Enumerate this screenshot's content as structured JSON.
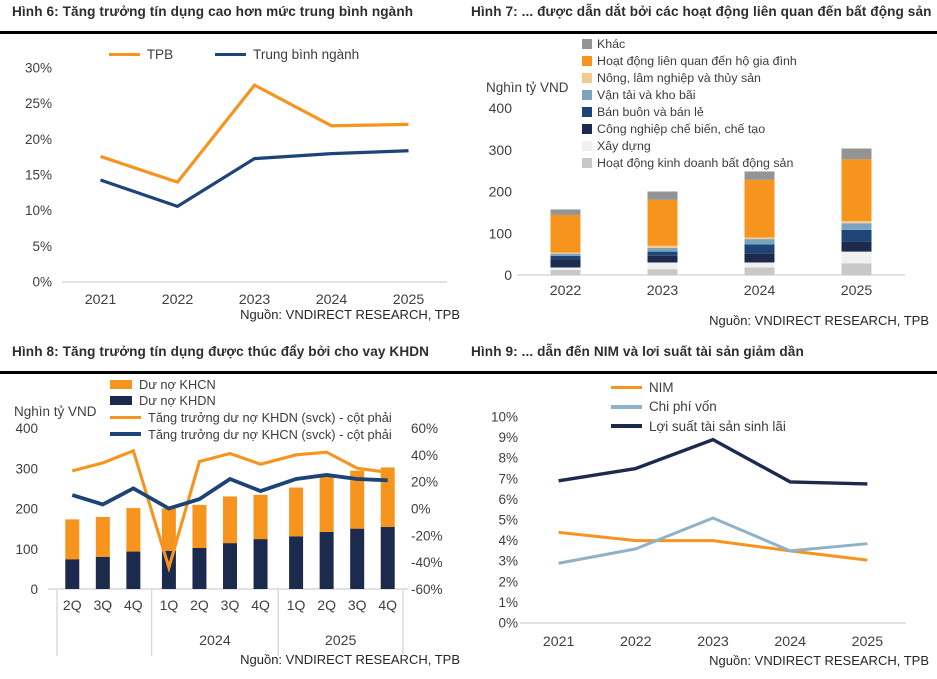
{
  "page": {
    "background": "#FFFFFF"
  },
  "colors": {
    "orange": "#F7941E",
    "navyLine": "#1D4478",
    "darkNavy": "#1C2B4D",
    "midBlue": "#1F4576",
    "steelBlue": "#7BA3BF",
    "steelBlue2": "#8FB3C6",
    "tan": "#F6C990",
    "gray": "#949494",
    "lightGray": "#C8C8C8",
    "offWhite": "#F1F1F1",
    "axisLine": "#D9D9D9",
    "tickText": "#3F3F3F"
  },
  "chart_data": [
    {
      "id": "fig6",
      "type": "line",
      "title": "Hình 6: Tăng trưởng tín dụng cao hơn mức trung bình ngành",
      "source": "Nguồn: VNDIRECT RESEARCH, TPB",
      "categories": [
        "2021",
        "2022",
        "2023",
        "2024",
        "2025"
      ],
      "series": [
        {
          "name": "TPB",
          "color_key": "orange",
          "values": [
            17.6,
            14.0,
            27.6,
            21.9,
            22.1
          ]
        },
        {
          "name": "Trung bình ngành",
          "color_key": "navyLine",
          "values": [
            14.3,
            10.6,
            17.3,
            18.0,
            18.4
          ]
        }
      ],
      "ylim": [
        0,
        30
      ],
      "ytick_step": 5,
      "yformat": "percent",
      "grid": "off",
      "legend_position": "top-center"
    },
    {
      "id": "fig7",
      "type": "bar",
      "title": "Hình 7: ... được dẫn dắt bởi các hoạt động liên quan đến bất động sản",
      "source": "Nguồn: VNDIRECT RESEARCH, TPB",
      "ylabel": "Nghìn tỷ VND",
      "categories": [
        "2022",
        "2023",
        "2024",
        "2025"
      ],
      "series_bottom_to_top": [
        {
          "name": "Hoạt động kinh doanh bất động sản",
          "color_key": "lightGray",
          "values": [
            12,
            14,
            18,
            28
          ]
        },
        {
          "name": "Xây dựng",
          "color_key": "offWhite",
          "values": [
            6,
            16,
            12,
            28
          ]
        },
        {
          "name": "Công nghiệp chế biến, chế tạo",
          "color_key": "darkNavy",
          "values": [
            20,
            16,
            22,
            24
          ]
        },
        {
          "name": "Bán buôn và bán lẻ",
          "color_key": "midBlue",
          "values": [
            8,
            10,
            21,
            28
          ]
        },
        {
          "name": "Vận tải và kho bãi",
          "color_key": "steelBlue",
          "values": [
            5,
            9,
            13,
            16
          ]
        },
        {
          "name": "Nông, lâm nghiệp và thủy sản",
          "color_key": "tan",
          "values": [
            3,
            5,
            4,
            5
          ]
        },
        {
          "name": "Hoạt động liên quan đến hộ gia đình",
          "color_key": "orange",
          "values": [
            90,
            110,
            138,
            148
          ]
        },
        {
          "name": "Khác",
          "color_key": "gray",
          "values": [
            13,
            20,
            20,
            26
          ]
        }
      ],
      "totals": [
        157,
        200,
        248,
        303
      ],
      "ylim": [
        0,
        400
      ],
      "ytick_step": 100,
      "grid": "off",
      "legend_position": "top-right-overlay"
    },
    {
      "id": "fig8",
      "type": "bar",
      "subtype": "stacked-bar-with-lines",
      "title": "Hình 8: Tăng trưởng tín dụng được thúc đẩy bởi cho vay KHDN",
      "source": "Nguồn: VNDIRECT RESEARCH, TPB",
      "ylabel_left": "Nghìn tỷ VND",
      "categories": [
        "2Q",
        "3Q",
        "4Q",
        "1Q",
        "2Q",
        "3Q",
        "4Q",
        "1Q",
        "2Q",
        "3Q",
        "4Q"
      ],
      "groups": [
        {
          "year_label": "",
          "count": 3
        },
        {
          "year_label": "2024",
          "count": 4
        },
        {
          "year_label": "2025",
          "count": 4
        }
      ],
      "bar_series_bottom_to_top": [
        {
          "name": "Dư nợ KHDN",
          "color_key": "darkNavy",
          "values": [
            74,
            80,
            93,
            95,
            102,
            114,
            124,
            131,
            142,
            150,
            154
          ]
        },
        {
          "name": "Dư nợ KHCN",
          "color_key": "orange",
          "values": [
            99,
            99,
            108,
            105,
            107,
            116,
            110,
            121,
            137,
            144,
            148
          ]
        }
      ],
      "line_series": [
        {
          "name": "Tăng trưởng dư nợ KHDN (svck) - cột phải",
          "color_key": "orange",
          "values": [
            28,
            34,
            43,
            -44,
            35,
            41,
            33,
            40,
            42,
            30,
            27
          ]
        },
        {
          "name": "Tăng trưởng dư nợ KHCN (svck) - cột phải",
          "color_key": "navyLine",
          "values": [
            10,
            3,
            15,
            0,
            7,
            22,
            13,
            22,
            25,
            22,
            21
          ]
        }
      ],
      "ylim_left": [
        0,
        400
      ],
      "ytick_step_left": 100,
      "ylim_right": [
        -60,
        60
      ],
      "ytick_step_right": 20,
      "yformat_right": "percent",
      "grid": "off",
      "legend_position": "top-center-overlay"
    },
    {
      "id": "fig9",
      "type": "line",
      "title": "Hình 9: ... dẫn đến NIM và lơi suất tài sản giảm dần",
      "source": "Nguồn: VNDIRECT RESEARCH, TPB",
      "categories": [
        "2021",
        "2022",
        "2023",
        "2024",
        "2025"
      ],
      "series": [
        {
          "name": "NIM",
          "color_key": "orange",
          "values": [
            4.4,
            4.0,
            4.0,
            3.5,
            3.05
          ]
        },
        {
          "name": "Chi phí vốn",
          "color_key": "steelBlue2",
          "values": [
            2.9,
            3.6,
            5.1,
            3.5,
            3.85
          ]
        },
        {
          "name": "Lợi suất tài sản sinh lãi",
          "color_key": "darkNavy",
          "values": [
            6.9,
            7.5,
            8.9,
            6.85,
            6.75
          ]
        }
      ],
      "ylim": [
        0,
        10
      ],
      "ytick_step": 1,
      "yformat": "percent",
      "grid": "off",
      "legend_position": "top-center"
    }
  ]
}
